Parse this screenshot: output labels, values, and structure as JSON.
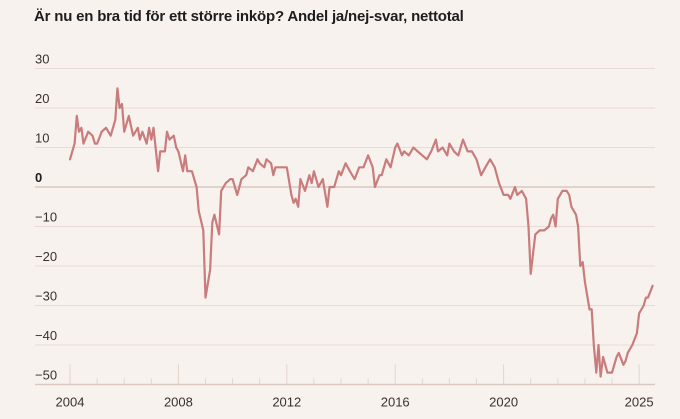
{
  "chart_data": {
    "type": "line",
    "title": "Är nu en bra tid för ett större inköp? Andel ja/nej-svar, nettotal",
    "xlabel": "",
    "ylabel": "",
    "ylim": [
      -50,
      30
    ],
    "xlim": [
      2004,
      2025.6
    ],
    "y_ticks": [
      30,
      20,
      10,
      0,
      -10,
      -20,
      -30,
      -40,
      -50
    ],
    "y_tick_labels": [
      "30",
      "20",
      "10",
      "0",
      "−10",
      "−20",
      "−30",
      "−40",
      "−50"
    ],
    "x_ticks": [
      2004,
      2008,
      2012,
      2016,
      2020,
      2025
    ],
    "x_tick_labels": [
      "2004",
      "2008",
      "2012",
      "2016",
      "2020",
      "2025"
    ],
    "grid": true,
    "legend": "none",
    "line_color": "#c97c7c",
    "series": [
      {
        "name": "Nettotal",
        "points": [
          [
            2004.0,
            7
          ],
          [
            2004.17,
            11
          ],
          [
            2004.25,
            18
          ],
          [
            2004.33,
            14
          ],
          [
            2004.42,
            15
          ],
          [
            2004.5,
            11
          ],
          [
            2004.67,
            14
          ],
          [
            2004.83,
            13
          ],
          [
            2004.92,
            11
          ],
          [
            2005.0,
            11
          ],
          [
            2005.17,
            14
          ],
          [
            2005.33,
            15
          ],
          [
            2005.5,
            13
          ],
          [
            2005.67,
            17
          ],
          [
            2005.75,
            25
          ],
          [
            2005.83,
            20
          ],
          [
            2005.92,
            21
          ],
          [
            2006.0,
            14
          ],
          [
            2006.17,
            18
          ],
          [
            2006.33,
            13
          ],
          [
            2006.5,
            15
          ],
          [
            2006.58,
            12
          ],
          [
            2006.67,
            14
          ],
          [
            2006.83,
            11
          ],
          [
            2006.92,
            15
          ],
          [
            2007.0,
            12
          ],
          [
            2007.08,
            15
          ],
          [
            2007.25,
            4
          ],
          [
            2007.33,
            9
          ],
          [
            2007.5,
            9
          ],
          [
            2007.58,
            14
          ],
          [
            2007.67,
            12
          ],
          [
            2007.83,
            13
          ],
          [
            2007.92,
            10
          ],
          [
            2008.0,
            9
          ],
          [
            2008.17,
            4
          ],
          [
            2008.25,
            8
          ],
          [
            2008.33,
            4
          ],
          [
            2008.5,
            4
          ],
          [
            2008.67,
            0
          ],
          [
            2008.75,
            -6
          ],
          [
            2008.92,
            -11
          ],
          [
            2009.0,
            -28
          ],
          [
            2009.17,
            -21
          ],
          [
            2009.25,
            -9
          ],
          [
            2009.33,
            -7
          ],
          [
            2009.5,
            -12
          ],
          [
            2009.58,
            -1
          ],
          [
            2009.75,
            1
          ],
          [
            2009.92,
            2
          ],
          [
            2010.0,
            2
          ],
          [
            2010.17,
            -2
          ],
          [
            2010.33,
            2
          ],
          [
            2010.5,
            3
          ],
          [
            2010.58,
            5
          ],
          [
            2010.75,
            4
          ],
          [
            2010.92,
            7
          ],
          [
            2011.0,
            6
          ],
          [
            2011.17,
            5
          ],
          [
            2011.25,
            7
          ],
          [
            2011.42,
            6
          ],
          [
            2011.5,
            3
          ],
          [
            2011.58,
            5
          ],
          [
            2011.75,
            5
          ],
          [
            2012.0,
            5
          ],
          [
            2012.17,
            -2
          ],
          [
            2012.25,
            -4
          ],
          [
            2012.33,
            -3
          ],
          [
            2012.42,
            -5
          ],
          [
            2012.5,
            2
          ],
          [
            2012.67,
            -1
          ],
          [
            2012.83,
            3
          ],
          [
            2012.92,
            1
          ],
          [
            2013.0,
            4
          ],
          [
            2013.17,
            0
          ],
          [
            2013.33,
            2
          ],
          [
            2013.5,
            -5
          ],
          [
            2013.58,
            0
          ],
          [
            2013.75,
            0
          ],
          [
            2013.92,
            4
          ],
          [
            2014.0,
            3
          ],
          [
            2014.17,
            6
          ],
          [
            2014.33,
            4
          ],
          [
            2014.5,
            2
          ],
          [
            2014.67,
            5
          ],
          [
            2014.83,
            5
          ],
          [
            2015.0,
            8
          ],
          [
            2015.17,
            5
          ],
          [
            2015.25,
            0
          ],
          [
            2015.42,
            3
          ],
          [
            2015.5,
            3
          ],
          [
            2015.67,
            7
          ],
          [
            2015.83,
            5
          ],
          [
            2016.0,
            10
          ],
          [
            2016.08,
            11
          ],
          [
            2016.25,
            8
          ],
          [
            2016.33,
            9
          ],
          [
            2016.5,
            8
          ],
          [
            2016.67,
            10
          ],
          [
            2016.83,
            9
          ],
          [
            2017.0,
            8
          ],
          [
            2017.17,
            7
          ],
          [
            2017.33,
            9
          ],
          [
            2017.5,
            12
          ],
          [
            2017.58,
            9
          ],
          [
            2017.75,
            10
          ],
          [
            2017.92,
            8
          ],
          [
            2018.0,
            11
          ],
          [
            2018.17,
            9
          ],
          [
            2018.33,
            8
          ],
          [
            2018.5,
            12
          ],
          [
            2018.67,
            9
          ],
          [
            2018.83,
            9
          ],
          [
            2019.0,
            7
          ],
          [
            2019.17,
            3
          ],
          [
            2019.33,
            5
          ],
          [
            2019.5,
            7
          ],
          [
            2019.67,
            5
          ],
          [
            2019.83,
            1
          ],
          [
            2020.0,
            -2
          ],
          [
            2020.17,
            -2
          ],
          [
            2020.25,
            -3
          ],
          [
            2020.42,
            0
          ],
          [
            2020.5,
            -2
          ],
          [
            2020.67,
            -1
          ],
          [
            2020.83,
            -3
          ],
          [
            2020.92,
            -10
          ],
          [
            2021.0,
            -22
          ],
          [
            2021.17,
            -12
          ],
          [
            2021.33,
            -11
          ],
          [
            2021.5,
            -11
          ],
          [
            2021.67,
            -10
          ],
          [
            2021.75,
            -8
          ],
          [
            2021.83,
            -7
          ],
          [
            2021.92,
            -10
          ],
          [
            2022.0,
            -3
          ],
          [
            2022.17,
            -1
          ],
          [
            2022.33,
            -1
          ],
          [
            2022.42,
            -2
          ],
          [
            2022.5,
            -5
          ],
          [
            2022.67,
            -7
          ],
          [
            2022.75,
            -10
          ],
          [
            2022.83,
            -20
          ],
          [
            2022.92,
            -19
          ],
          [
            2023.0,
            -24
          ],
          [
            2023.17,
            -31
          ],
          [
            2023.25,
            -31
          ],
          [
            2023.33,
            -40
          ],
          [
            2023.42,
            -47
          ],
          [
            2023.5,
            -40
          ],
          [
            2023.58,
            -48
          ],
          [
            2023.67,
            -43
          ],
          [
            2023.83,
            -47
          ],
          [
            2024.0,
            -47
          ],
          [
            2024.17,
            -43
          ],
          [
            2024.25,
            -42
          ],
          [
            2024.42,
            -45
          ],
          [
            2024.5,
            -44
          ],
          [
            2024.58,
            -42
          ],
          [
            2024.75,
            -40
          ],
          [
            2024.92,
            -37
          ],
          [
            2025.0,
            -32
          ],
          [
            2025.17,
            -30
          ],
          [
            2025.25,
            -28
          ],
          [
            2025.33,
            -28
          ],
          [
            2025.5,
            -25
          ]
        ]
      }
    ]
  }
}
